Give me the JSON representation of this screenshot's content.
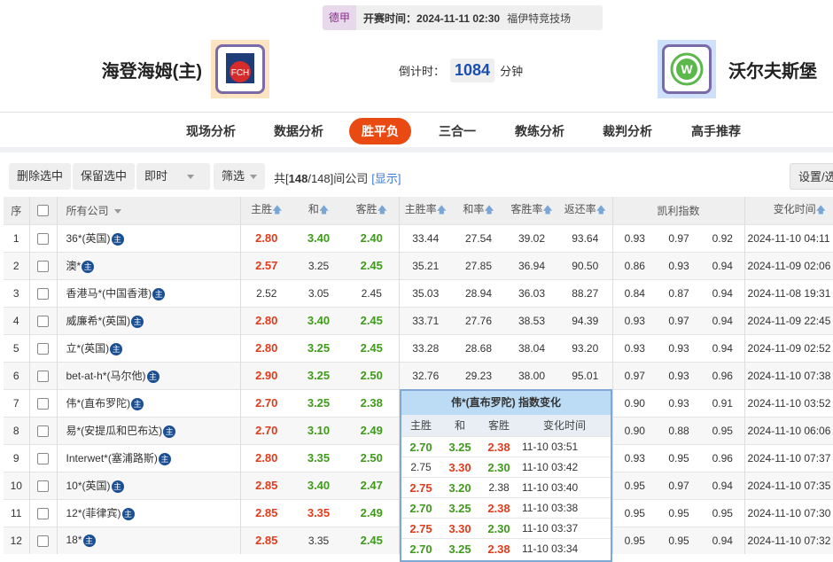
{
  "match": {
    "league": "德甲",
    "kickoff": "开赛时间：2024-11-11 02:30",
    "venue": "福伊特竞技场",
    "home": "海登海姆(主)",
    "away": "沃尔夫斯堡",
    "home_logo_text": "FCH",
    "away_logo_text": "W",
    "countdown_label": "倒计时：",
    "countdown_value": "1084",
    "countdown_unit": "分钟"
  },
  "nav": [
    {
      "label": "现场分析"
    },
    {
      "label": "数据分析"
    },
    {
      "label": "胜平负",
      "active": true
    },
    {
      "label": "三合一"
    },
    {
      "label": "教练分析"
    },
    {
      "label": "裁判分析"
    },
    {
      "label": "高手推荐"
    }
  ],
  "toolbar": {
    "delete": "删除选中",
    "keep": "保留选中",
    "mode": "即时",
    "filter": "筛选",
    "summary_pre": "共[",
    "summary_count": "148",
    "summary_post": "/148]间公司",
    "show": "[显示]",
    "settings": "设置/选"
  },
  "headers": {
    "seq": "序",
    "company": "所有公司",
    "home": "主胜",
    "draw": "和",
    "away": "客胜",
    "home_rate": "主胜率",
    "draw_rate": "和率",
    "away_rate": "客胜率",
    "return": "返还率",
    "kelly": "凯利指数",
    "time": "变化时间"
  },
  "badge": "主",
  "colors": {
    "red": "#e23b1c",
    "green": "#3f9a1c",
    "accent": "#e84a12"
  },
  "rows": [
    {
      "n": "1",
      "company": "36*(英国)",
      "odds": [
        [
          "2.80",
          "red"
        ],
        [
          "3.40",
          "green"
        ],
        [
          "2.40",
          "green"
        ]
      ],
      "rates": [
        "33.44",
        "27.54",
        "39.02",
        "93.64"
      ],
      "kelly": [
        "0.93",
        "0.97",
        "0.92"
      ],
      "time": "2024-11-10 04:11"
    },
    {
      "n": "2",
      "company": "澳*",
      "odds": [
        [
          "2.57",
          "red"
        ],
        [
          "3.25",
          ""
        ],
        [
          "2.45",
          "green"
        ]
      ],
      "rates": [
        "35.21",
        "27.85",
        "36.94",
        "90.50"
      ],
      "kelly": [
        "0.86",
        "0.93",
        "0.94"
      ],
      "time": "2024-11-09 02:06"
    },
    {
      "n": "3",
      "company": "香港马*(中国香港)",
      "odds": [
        [
          "2.52",
          ""
        ],
        [
          "3.05",
          ""
        ],
        [
          "2.45",
          ""
        ]
      ],
      "rates": [
        "35.03",
        "28.94",
        "36.03",
        "88.27"
      ],
      "kelly": [
        "0.84",
        "0.87",
        "0.94"
      ],
      "time": "2024-11-08 19:31"
    },
    {
      "n": "4",
      "company": "威廉希*(英国)",
      "odds": [
        [
          "2.80",
          "red"
        ],
        [
          "3.40",
          "green"
        ],
        [
          "2.45",
          "green"
        ]
      ],
      "rates": [
        "33.71",
        "27.76",
        "38.53",
        "94.39"
      ],
      "kelly": [
        "0.93",
        "0.97",
        "0.94"
      ],
      "time": "2024-11-09 22:45"
    },
    {
      "n": "5",
      "company": "立*(英国)",
      "odds": [
        [
          "2.80",
          "red"
        ],
        [
          "3.25",
          "green"
        ],
        [
          "2.45",
          "green"
        ]
      ],
      "rates": [
        "33.28",
        "28.68",
        "38.04",
        "93.20"
      ],
      "kelly": [
        "0.93",
        "0.93",
        "0.94"
      ],
      "time": "2024-11-09 02:52"
    },
    {
      "n": "6",
      "company": "bet-at-h*(马尔他)",
      "odds": [
        [
          "2.90",
          "red"
        ],
        [
          "3.25",
          "green"
        ],
        [
          "2.50",
          "green"
        ]
      ],
      "rates": [
        "32.76",
        "29.23",
        "38.00",
        "95.01"
      ],
      "kelly": [
        "0.97",
        "0.93",
        "0.96"
      ],
      "time": "2024-11-10 07:38"
    },
    {
      "n": "7",
      "company": "伟*(直布罗陀)",
      "odds": [
        [
          "2.70",
          "red"
        ],
        [
          "3.25",
          "green"
        ],
        [
          "2.38",
          "green"
        ]
      ],
      "kelly": [
        "0.90",
        "0.93",
        "0.91"
      ],
      "time": "2024-11-10 03:52"
    },
    {
      "n": "8",
      "company": "易*(安提瓜和巴布达)",
      "odds": [
        [
          "2.70",
          "red"
        ],
        [
          "3.10",
          "green"
        ],
        [
          "2.49",
          "green"
        ]
      ],
      "kelly": [
        "0.90",
        "0.88",
        "0.95"
      ],
      "time": "2024-11-10 06:06"
    },
    {
      "n": "9",
      "company": "Interwet*(塞浦路斯)",
      "odds": [
        [
          "2.80",
          "red"
        ],
        [
          "3.35",
          "green"
        ],
        [
          "2.50",
          "green"
        ]
      ],
      "kelly": [
        "0.93",
        "0.95",
        "0.96"
      ],
      "time": "2024-11-10 07:37"
    },
    {
      "n": "10",
      "company": "10*(英国)",
      "odds": [
        [
          "2.85",
          "red"
        ],
        [
          "3.40",
          "green"
        ],
        [
          "2.47",
          "green"
        ]
      ],
      "kelly": [
        "0.95",
        "0.97",
        "0.94"
      ],
      "time": "2024-11-10 07:35"
    },
    {
      "n": "11",
      "company": "12*(菲律宾)",
      "odds": [
        [
          "2.85",
          "red"
        ],
        [
          "3.35",
          "red"
        ],
        [
          "2.49",
          "green"
        ]
      ],
      "kelly": [
        "0.95",
        "0.95",
        "0.95"
      ],
      "time": "2024-11-10 07:30"
    },
    {
      "n": "12",
      "company": "18*",
      "odds": [
        [
          "2.85",
          "red"
        ],
        [
          "3.35",
          ""
        ],
        [
          "2.45",
          "green"
        ]
      ],
      "kelly": [
        "0.95",
        "0.95",
        "0.94"
      ],
      "time": "2024-11-10 07:32"
    }
  ],
  "popup": {
    "title": "伟*(直布罗陀) 指数变化",
    "headers": [
      "主胜",
      "和",
      "客胜",
      "变化时间"
    ],
    "rows": [
      {
        "odds": [
          [
            "2.70",
            "green"
          ],
          [
            "3.25",
            "green"
          ],
          [
            "2.38",
            "red"
          ]
        ],
        "time": "11-10 03:51"
      },
      {
        "odds": [
          [
            "2.75",
            ""
          ],
          [
            "3.30",
            "red"
          ],
          [
            "2.30",
            "green"
          ]
        ],
        "time": "11-10 03:42"
      },
      {
        "odds": [
          [
            "2.75",
            "red"
          ],
          [
            "3.20",
            "green"
          ],
          [
            "2.38",
            ""
          ]
        ],
        "time": "11-10 03:40"
      },
      {
        "odds": [
          [
            "2.70",
            "green"
          ],
          [
            "3.25",
            "green"
          ],
          [
            "2.38",
            "red"
          ]
        ],
        "time": "11-10 03:38"
      },
      {
        "odds": [
          [
            "2.75",
            "red"
          ],
          [
            "3.30",
            "red"
          ],
          [
            "2.30",
            "green"
          ]
        ],
        "time": "11-10 03:37"
      },
      {
        "odds": [
          [
            "2.70",
            "green"
          ],
          [
            "3.25",
            "green"
          ],
          [
            "2.38",
            "red"
          ]
        ],
        "time": "11-10 03:34"
      }
    ]
  }
}
